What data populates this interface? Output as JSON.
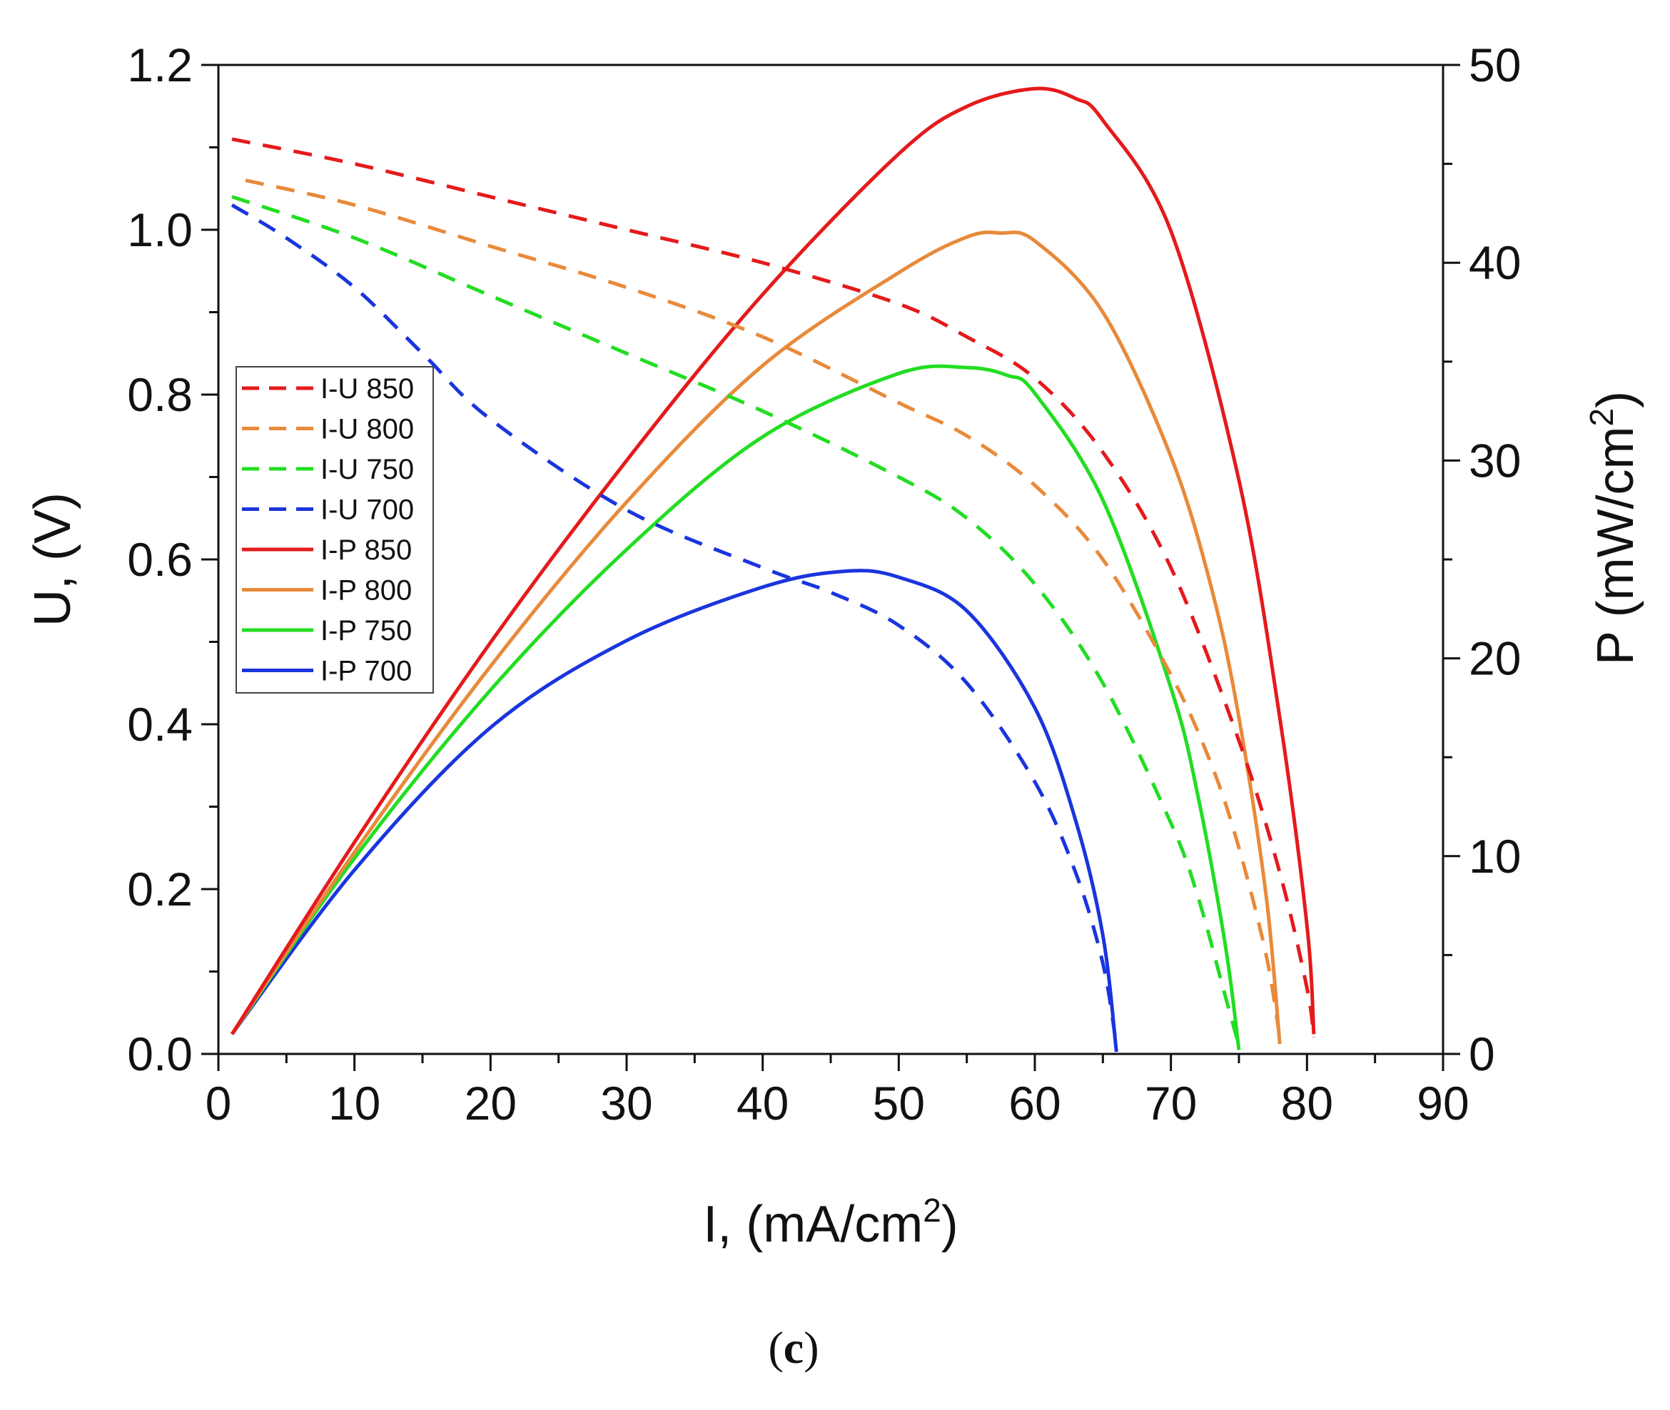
{
  "chart_data": {
    "type": "line",
    "panel_label": {
      "open": "(",
      "letter": "c",
      "close": ")"
    },
    "xlabel": {
      "text": "I, (mA/cm",
      "sup": "2",
      "close": ")"
    },
    "ylabel_left": "U, (V)",
    "ylabel_right": {
      "text": "P (mW/cm",
      "sup": "2",
      "close": ")"
    },
    "xlim": [
      0,
      90
    ],
    "ylim_left": [
      0,
      1.2
    ],
    "ylim_right": [
      0,
      50
    ],
    "x_ticks": [
      "0",
      "10",
      "20",
      "30",
      "40",
      "50",
      "60",
      "70",
      "80",
      "90"
    ],
    "y_left_ticks": [
      "0.0",
      "0.2",
      "0.4",
      "0.6",
      "0.8",
      "1.0",
      "1.2"
    ],
    "y_right_ticks": [
      "0",
      "10",
      "20",
      "30",
      "40",
      "50"
    ],
    "grid": false,
    "legend_position": "middle-left",
    "series": [
      {
        "name": "I-U 850",
        "axis": "left",
        "style": "dashed",
        "color": "#e41a1c",
        "x": [
          1,
          10,
          20,
          30,
          40,
          50,
          55,
          60,
          65,
          70,
          75,
          78,
          80,
          80.5
        ],
        "y": [
          1.11,
          1.08,
          1.04,
          1.0,
          0.96,
          0.91,
          0.87,
          0.82,
          0.73,
          0.59,
          0.38,
          0.22,
          0.08,
          0.02
        ]
      },
      {
        "name": "I-U 800",
        "axis": "left",
        "style": "dashed",
        "color": "#e88a3a",
        "x": [
          2,
          10,
          20,
          30,
          40,
          50,
          55,
          60,
          65,
          70,
          73,
          75,
          77,
          78
        ],
        "y": [
          1.06,
          1.03,
          0.98,
          0.93,
          0.87,
          0.79,
          0.75,
          0.69,
          0.6,
          0.46,
          0.35,
          0.25,
          0.12,
          0.02
        ]
      },
      {
        "name": "I-U 750",
        "axis": "left",
        "style": "dashed",
        "color": "#22dd22",
        "x": [
          1,
          10,
          20,
          30,
          40,
          50,
          55,
          60,
          65,
          70,
          72,
          74,
          75
        ],
        "y": [
          1.04,
          0.99,
          0.92,
          0.85,
          0.78,
          0.7,
          0.65,
          0.57,
          0.45,
          0.28,
          0.19,
          0.07,
          0.01
        ]
      },
      {
        "name": "I-U 700",
        "axis": "left",
        "style": "dashed",
        "color": "#1a35dd",
        "x": [
          1,
          5,
          10,
          15,
          20,
          30,
          40,
          45,
          50,
          55,
          60,
          63,
          65,
          66
        ],
        "y": [
          1.03,
          0.99,
          0.93,
          0.85,
          0.77,
          0.66,
          0.59,
          0.56,
          0.52,
          0.45,
          0.33,
          0.22,
          0.11,
          0.01
        ]
      },
      {
        "name": "I-P 850",
        "axis": "right",
        "style": "solid",
        "color": "#e41a1c",
        "x": [
          1,
          10,
          20,
          30,
          40,
          50,
          55,
          60,
          63,
          65,
          70,
          75,
          78,
          80,
          80.5
        ],
        "y": [
          1.0,
          10.7,
          20.8,
          30.0,
          38.4,
          45.5,
          47.9,
          48.8,
          48.3,
          47.2,
          41.6,
          29.0,
          17.0,
          6.5,
          1.0
        ]
      },
      {
        "name": "I-P 800",
        "axis": "right",
        "style": "solid",
        "color": "#e88a3a",
        "x": [
          1,
          10,
          20,
          30,
          40,
          50,
          55,
          57.5,
          60,
          65,
          70,
          73,
          75,
          77,
          78
        ],
        "y": [
          1.0,
          10.2,
          19.6,
          27.9,
          34.8,
          39.5,
          41.3,
          41.5,
          41.1,
          37.5,
          30.2,
          23.5,
          17.0,
          8.0,
          0.5
        ]
      },
      {
        "name": "I-P 750",
        "axis": "right",
        "style": "solid",
        "color": "#22dd22",
        "x": [
          1,
          10,
          20,
          30,
          40,
          50,
          55,
          58,
          60,
          65,
          70,
          72,
          74,
          75
        ],
        "y": [
          1.0,
          9.9,
          18.4,
          25.5,
          31.2,
          34.4,
          34.7,
          34.3,
          33.4,
          28.0,
          18.5,
          13.0,
          5.5,
          0.2
        ]
      },
      {
        "name": "I-P 700",
        "axis": "right",
        "style": "solid",
        "color": "#1a35dd",
        "x": [
          1,
          10,
          20,
          30,
          40,
          46,
          50,
          55,
          60,
          63,
          65,
          66
        ],
        "y": [
          1.0,
          9.3,
          16.5,
          20.9,
          23.6,
          24.4,
          24.1,
          22.4,
          17.5,
          11.8,
          6.0,
          0.1
        ]
      }
    ]
  }
}
